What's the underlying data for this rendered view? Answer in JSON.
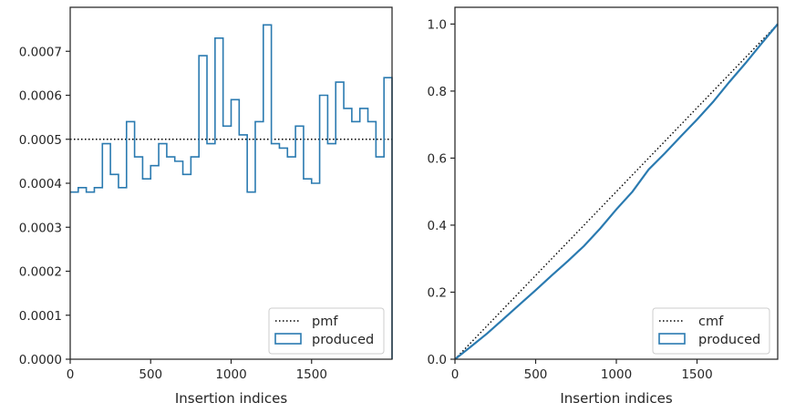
{
  "chart_data": [
    {
      "type": "histogram-step",
      "title": "",
      "xlabel": "Insertion indices",
      "ylabel": "",
      "xlim": [
        0,
        2000
      ],
      "ylim": [
        0,
        0.0008
      ],
      "xticks": [
        0,
        500,
        1000,
        1500
      ],
      "xtick_labels": [
        "0",
        "500",
        "1000",
        "1500"
      ],
      "yticks": [
        0,
        0.0001,
        0.0002,
        0.0003,
        0.0004,
        0.0005,
        0.0006,
        0.0007
      ],
      "ytick_labels": [
        "0.0000",
        "0.0001",
        "0.0002",
        "0.0003",
        "0.0004",
        "0.0005",
        "0.0006",
        "0.0007"
      ],
      "legend_position": "lower-right",
      "series": [
        {
          "name": "pmf",
          "style": "dotted",
          "color": "#000000",
          "x": [
            0,
            2000
          ],
          "y": [
            0.0005,
            0.0005
          ]
        },
        {
          "name": "produced",
          "style": "step",
          "color": "#2a7ab0",
          "bin_width": 50,
          "bin_edges_start": 0,
          "values": [
            0.00038,
            0.00039,
            0.00038,
            0.00039,
            0.00049,
            0.00042,
            0.00039,
            0.00054,
            0.00046,
            0.00041,
            0.00044,
            0.00049,
            0.00046,
            0.00045,
            0.00042,
            0.00046,
            0.00069,
            0.00049,
            0.00073,
            0.00053,
            0.00059,
            0.00051,
            0.00038,
            0.00054,
            0.00076,
            0.00049,
            0.00048,
            0.00046,
            0.00053,
            0.00041,
            0.0004,
            0.0006,
            0.00049,
            0.00063,
            0.00057,
            0.00054,
            0.00057,
            0.00054,
            0.00046,
            0.00064
          ]
        }
      ]
    },
    {
      "type": "line",
      "title": "",
      "xlabel": "Insertion indices",
      "ylabel": "",
      "xlim": [
        0,
        2000
      ],
      "ylim": [
        0,
        1.05
      ],
      "xticks": [
        0,
        500,
        1000,
        1500
      ],
      "xtick_labels": [
        "0",
        "500",
        "1000",
        "1500"
      ],
      "yticks": [
        0,
        0.2,
        0.4,
        0.6,
        0.8,
        1.0
      ],
      "ytick_labels": [
        "0.0",
        "0.2",
        "0.4",
        "0.6",
        "0.8",
        "1.0"
      ],
      "legend_position": "lower-right",
      "series": [
        {
          "name": "cmf",
          "style": "dotted",
          "color": "#000000",
          "x": [
            0,
            2000
          ],
          "y": [
            0,
            1.0
          ]
        },
        {
          "name": "produced",
          "style": "solid",
          "color": "#2a7ab0",
          "x": [
            0,
            100,
            200,
            300,
            400,
            500,
            600,
            700,
            800,
            900,
            1000,
            1100,
            1200,
            1300,
            1400,
            1500,
            1600,
            1700,
            1800,
            1900,
            2000
          ],
          "y": [
            0,
            0.038,
            0.077,
            0.12,
            0.163,
            0.206,
            0.25,
            0.293,
            0.338,
            0.39,
            0.447,
            0.5,
            0.566,
            0.614,
            0.665,
            0.715,
            0.768,
            0.827,
            0.883,
            0.942,
            1.0
          ]
        }
      ]
    }
  ]
}
